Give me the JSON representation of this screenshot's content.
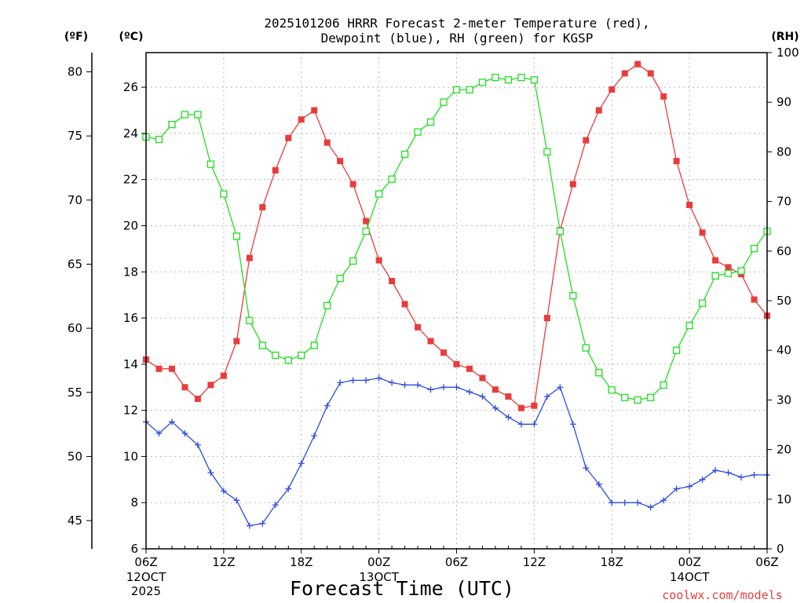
{
  "title_line1": "2025101206 HRRR Forecast 2-meter Temperature (red),",
  "title_line2": "Dewpoint (blue), RH (green) for KGSP",
  "unit_f": "(ºF)",
  "unit_c": "(ºC)",
  "unit_rh": "(RH)",
  "xlabel": "Forecast Time (UTC)",
  "credit": "coolwx.com/models",
  "chart_data": {
    "type": "line",
    "title": "2025101206 HRRR Forecast 2-meter Temperature (red), Dewpoint (blue), RH (green) for KGSP",
    "xlabel": "Forecast Time (UTC)",
    "x": [
      0,
      1,
      2,
      3,
      4,
      5,
      6,
      7,
      8,
      9,
      10,
      11,
      12,
      13,
      14,
      15,
      16,
      17,
      18,
      19,
      20,
      21,
      22,
      23,
      24,
      25,
      26,
      27,
      28,
      29,
      30,
      31,
      32,
      33,
      34,
      35,
      36,
      37,
      38,
      39,
      40,
      41,
      42,
      43,
      44,
      45,
      46,
      47,
      48
    ],
    "x_unit": "hours since 06Z 12 OCT 2025",
    "xlim": [
      0,
      48
    ],
    "x_ticks": [
      {
        "x": 0,
        "label": "06Z",
        "sub1": "12OCT",
        "sub2": "2025"
      },
      {
        "x": 6,
        "label": "12Z"
      },
      {
        "x": 12,
        "label": "18Z"
      },
      {
        "x": 18,
        "label": "00Z",
        "sub1": "13OCT"
      },
      {
        "x": 24,
        "label": "06Z"
      },
      {
        "x": 30,
        "label": "12Z"
      },
      {
        "x": 36,
        "label": "18Z"
      },
      {
        "x": 42,
        "label": "00Z",
        "sub1": "14OCT"
      },
      {
        "x": 48,
        "label": "06Z"
      }
    ],
    "ylim_c": [
      6,
      27.5
    ],
    "y_ticks_c": [
      6,
      8,
      10,
      12,
      14,
      16,
      18,
      20,
      22,
      24,
      26
    ],
    "y_ticks_f": [
      45,
      50,
      55,
      60,
      65,
      70,
      75,
      80
    ],
    "ylim_rh": [
      0,
      100
    ],
    "y_ticks_rh": [
      0,
      10,
      20,
      30,
      40,
      50,
      60,
      70,
      80,
      90,
      100
    ],
    "grid": true,
    "series": [
      {
        "name": "2-meter Temperature",
        "axis": "celsius",
        "color": "#e83c3c",
        "marker": "filled-square",
        "values": [
          14.2,
          13.8,
          13.8,
          13.0,
          12.5,
          13.1,
          13.5,
          15.0,
          18.6,
          20.8,
          22.4,
          23.8,
          24.6,
          25.0,
          23.6,
          22.8,
          21.8,
          20.2,
          18.5,
          17.6,
          16.6,
          15.6,
          15.0,
          14.5,
          14.0,
          13.8,
          13.4,
          12.9,
          12.6,
          12.1,
          12.2,
          16.0,
          19.8,
          21.8,
          23.7,
          25.0,
          25.9,
          26.6,
          27.0,
          26.6,
          25.6,
          22.8,
          20.9,
          19.7,
          18.5,
          18.2,
          17.9,
          16.8,
          16.1
        ]
      },
      {
        "name": "Dewpoint",
        "axis": "celsius",
        "color": "#2c4ce0",
        "marker": "plus",
        "values": [
          11.5,
          11.0,
          11.5,
          11.0,
          10.5,
          9.3,
          8.5,
          8.1,
          7.0,
          7.1,
          7.9,
          8.6,
          9.7,
          10.9,
          12.2,
          13.2,
          13.3,
          13.3,
          13.4,
          13.2,
          13.1,
          13.1,
          12.9,
          13.0,
          13.0,
          12.8,
          12.6,
          12.1,
          11.7,
          11.4,
          11.4,
          12.6,
          13.0,
          11.4,
          9.5,
          8.8,
          8.0,
          8.0,
          8.0,
          7.8,
          8.1,
          8.6,
          8.7,
          9.0,
          9.4,
          9.3,
          9.1,
          9.2,
          9.2
        ]
      },
      {
        "name": "Relative Humidity",
        "axis": "rh",
        "color": "#22dd22",
        "marker": "open-square",
        "values": [
          83,
          82.5,
          85.5,
          87.5,
          87.5,
          77.5,
          71.5,
          63,
          46,
          41,
          39,
          38,
          39,
          41,
          49,
          54.5,
          58,
          64,
          71.5,
          74.5,
          79.5,
          84,
          86,
          90,
          92.5,
          92.5,
          94,
          95,
          94.5,
          95,
          94.5,
          80,
          64,
          51,
          40.5,
          35.5,
          32,
          30.5,
          30,
          30.5,
          33,
          40,
          45,
          49.5,
          55,
          55.5,
          56,
          60.5,
          64
        ]
      }
    ]
  }
}
